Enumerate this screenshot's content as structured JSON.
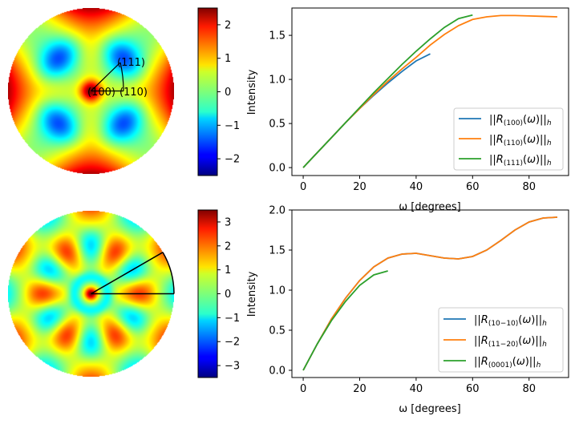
{
  "chart_data": [
    {
      "type": "heatmap",
      "name": "pole-figure-cubic",
      "colormap": "jet",
      "colorbar": {
        "label": "Intensity",
        "range": [
          -2.5,
          2.5
        ],
        "ticks": [
          2,
          1,
          0,
          -1,
          -2
        ],
        "tick_labels": [
          "2",
          "1",
          "0",
          "−1",
          "−2"
        ]
      },
      "annotations": [
        "(111)",
        "(100)",
        "(110)"
      ],
      "overlay": "fundamental-triangle"
    },
    {
      "type": "line",
      "name": "cubic-R-norm",
      "xlim": [
        -4,
        94
      ],
      "ylim": [
        -0.09,
        1.81
      ],
      "xticks": [
        0,
        20,
        40,
        60,
        80
      ],
      "yticks": [
        0.0,
        0.5,
        1.0,
        1.5
      ],
      "ytick_labels": [
        "0.0",
        "0.5",
        "1.0",
        "1.5"
      ],
      "xlabel": "ω [degrees]",
      "ylabel": "",
      "legend": "lower-right",
      "series": [
        {
          "name": "||R(100)(ω)||h",
          "sub": "(100)",
          "color": "#1f77b4",
          "x": [
            0,
            5,
            10,
            15,
            20,
            25,
            30,
            35,
            40,
            45
          ],
          "y": [
            0,
            0.17,
            0.34,
            0.51,
            0.67,
            0.82,
            0.96,
            1.09,
            1.21,
            1.29
          ]
        },
        {
          "name": "||R(110)(ω)||h",
          "sub": "(110)",
          "color": "#ff7f0e",
          "x": [
            0,
            5,
            10,
            15,
            20,
            25,
            30,
            35,
            40,
            45,
            50,
            55,
            60,
            65,
            70,
            75,
            80,
            85,
            90
          ],
          "y": [
            0,
            0.17,
            0.34,
            0.51,
            0.67,
            0.83,
            0.98,
            1.12,
            1.25,
            1.39,
            1.51,
            1.61,
            1.68,
            1.71,
            1.725,
            1.725,
            1.72,
            1.715,
            1.71
          ]
        },
        {
          "name": "||R(111)(ω)||h",
          "sub": "(111)",
          "color": "#2ca02c",
          "x": [
            0,
            5,
            10,
            15,
            20,
            25,
            30,
            35,
            40,
            45,
            50,
            55,
            60
          ],
          "y": [
            0,
            0.17,
            0.34,
            0.51,
            0.68,
            0.85,
            1.01,
            1.17,
            1.32,
            1.46,
            1.59,
            1.69,
            1.73
          ]
        }
      ]
    },
    {
      "type": "heatmap",
      "name": "pole-figure-hexagonal",
      "colormap": "jet",
      "colorbar": {
        "label": "Intensity",
        "range": [
          -3.5,
          3.5
        ],
        "ticks": [
          3,
          2,
          1,
          0,
          -1,
          -2,
          -3
        ],
        "tick_labels": [
          "3",
          "2",
          "1",
          "0",
          "−1",
          "−2",
          "−3"
        ]
      },
      "overlay": "fundamental-sector-30deg"
    },
    {
      "type": "line",
      "name": "hexagonal-R-norm",
      "xlim": [
        -4,
        94
      ],
      "ylim": [
        -0.09,
        2.0
      ],
      "xticks": [
        0,
        20,
        40,
        60,
        80
      ],
      "yticks": [
        0.0,
        0.5,
        1.0,
        1.5,
        2.0
      ],
      "ytick_labels": [
        "0.0",
        "0.5",
        "1.0",
        "1.5",
        "2.0"
      ],
      "xlabel": "ω [degrees]",
      "ylabel": "",
      "legend": "lower-right",
      "series": [
        {
          "name": "||R(10−10)(ω)||h",
          "sub": "(10−10)",
          "color": "#1f77b4",
          "x": [
            0,
            5,
            10,
            15,
            20,
            25,
            30,
            35,
            40,
            45,
            50,
            55,
            60,
            65,
            70,
            75,
            80,
            85,
            90
          ],
          "y": [
            0,
            0.33,
            0.64,
            0.9,
            1.12,
            1.29,
            1.4,
            1.45,
            1.46,
            1.43,
            1.4,
            1.39,
            1.42,
            1.5,
            1.62,
            1.75,
            1.85,
            1.9,
            1.91
          ]
        },
        {
          "name": "||R(11−20)(ω)||h",
          "sub": "(11−20)",
          "color": "#ff7f0e",
          "x": [
            0,
            5,
            10,
            15,
            20,
            25,
            30,
            35,
            40,
            45,
            50,
            55,
            60,
            65,
            70,
            75,
            80,
            85,
            90
          ],
          "y": [
            0,
            0.33,
            0.64,
            0.9,
            1.12,
            1.29,
            1.4,
            1.45,
            1.46,
            1.43,
            1.4,
            1.39,
            1.42,
            1.5,
            1.62,
            1.75,
            1.85,
            1.9,
            1.91
          ]
        },
        {
          "name": "||R(0001)(ω)||h",
          "sub": "(0001)",
          "color": "#2ca02c",
          "x": [
            0,
            5,
            10,
            15,
            20,
            25,
            30
          ],
          "y": [
            0,
            0.33,
            0.62,
            0.86,
            1.06,
            1.19,
            1.24
          ]
        }
      ]
    }
  ]
}
